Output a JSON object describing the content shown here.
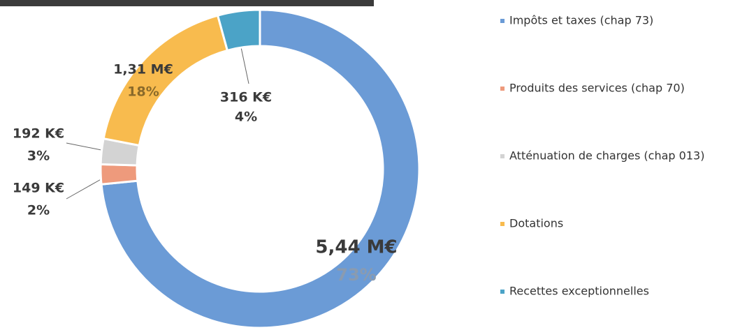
{
  "chart_data": {
    "type": "donut",
    "categories": [
      "Impôts et taxes (chap 73)",
      "Produits des services  (chap 70)",
      "Atténuation de charges  (chap 013)",
      "Dotations",
      "Recettes exceptionnelles"
    ],
    "values": [
      5440000,
      149000,
      192000,
      1310000,
      316000
    ],
    "value_labels": [
      "5,44 M€",
      "149 K€",
      "192 K€",
      "1,31 M€",
      "316 K€"
    ],
    "percent_labels": [
      "73%",
      "2%",
      "3%",
      "18%",
      "4%"
    ],
    "colors": [
      "#6b9bd6",
      "#ee9a7c",
      "#d3d3d3",
      "#f8bb4e",
      "#4ba3c7"
    ],
    "legend": "right"
  }
}
